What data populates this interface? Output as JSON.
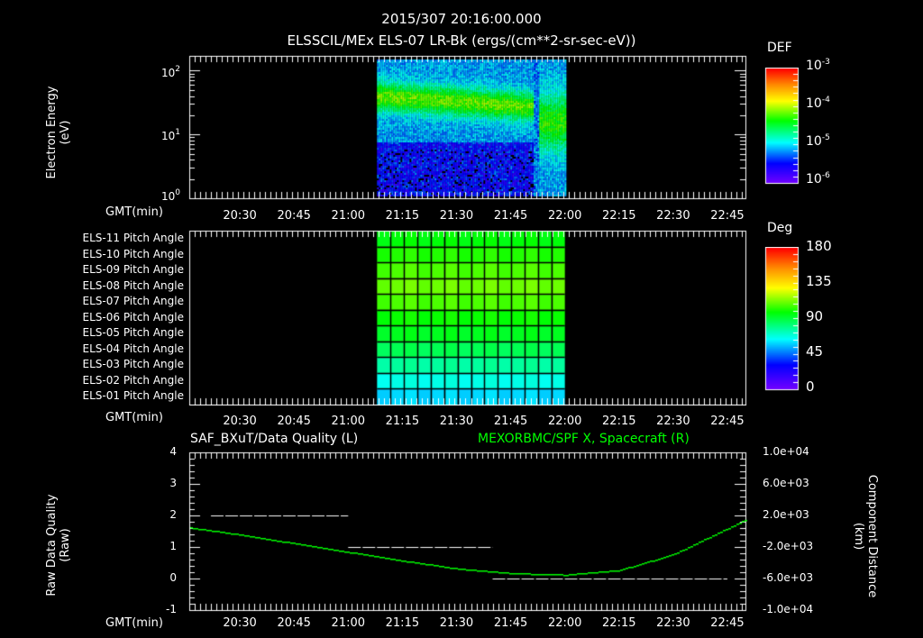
{
  "header": {
    "timestamp": "2015/307 20:16:00.000",
    "subtitle": "ELSSCIL/MEx ELS-07 LR-Bk  (ergs/(cm**2-sr-sec-eV))"
  },
  "x_axis": {
    "label": "GMT(min)",
    "ticks": [
      "20:30",
      "20:45",
      "21:00",
      "21:15",
      "21:30",
      "21:45",
      "22:00",
      "22:15",
      "22:30",
      "22:45"
    ]
  },
  "panel1": {
    "ylabel_line1": "Electron Energy",
    "ylabel_line2": "(eV)",
    "yticks": [
      {
        "base": "10",
        "exp": "2"
      },
      {
        "base": "10",
        "exp": "1"
      },
      {
        "base": "10",
        "exp": "0"
      }
    ],
    "colorbar": {
      "title": "DEF",
      "ticks": [
        {
          "base": "10",
          "exp": "-3"
        },
        {
          "base": "10",
          "exp": "-4"
        },
        {
          "base": "10",
          "exp": "-5"
        },
        {
          "base": "10",
          "exp": "-6"
        }
      ]
    }
  },
  "panel2": {
    "rows": [
      "ELS-11 Pitch Angle",
      "ELS-10 Pitch Angle",
      "ELS-09 Pitch Angle",
      "ELS-08 Pitch Angle",
      "ELS-07 Pitch Angle",
      "ELS-06 Pitch Angle",
      "ELS-05 Pitch Angle",
      "ELS-04 Pitch Angle",
      "ELS-03 Pitch Angle",
      "ELS-02 Pitch Angle",
      "ELS-01 Pitch Angle"
    ],
    "colorbar": {
      "title": "Deg",
      "ticks": [
        "180",
        "135",
        "90",
        "45",
        "0"
      ]
    }
  },
  "panel3": {
    "title_left": "SAF_BXuT/Data Quality (L)",
    "title_right": "MEXORBMC/SPF X, Spacecraft (R)",
    "ylabel_left_line1": "Raw Data Quality",
    "ylabel_left_line2": "(Raw)",
    "yticks_left": [
      "4",
      "3",
      "2",
      "1",
      "0",
      "-1"
    ],
    "ylabel_right_line1": "Component Distance",
    "ylabel_right_line2": "(km)",
    "yticks_right": [
      "1.0e+04",
      "6.0e+03",
      "2.0e+03",
      "-2.0e+03",
      "-6.0e+03",
      "-1.0e+04"
    ]
  },
  "colors": {
    "background": "#000000",
    "axes": "#ffffff",
    "spf_x": "#00ff00",
    "quality": "#ffffff"
  },
  "chart_data": [
    {
      "type": "heatmap",
      "title": "ELSSCIL/MEx ELS-07 LR-Bk (ergs/(cm**2-sr-sec-eV))",
      "xlabel": "GMT(min)",
      "ylabel": "Electron Energy (eV)",
      "x_range": [
        "20:16",
        "22:50"
      ],
      "y_range": [
        1,
        150
      ],
      "y_scale": "log",
      "data_time_range": [
        "21:08",
        "22:00"
      ],
      "colorbar": {
        "label": "DEF",
        "range": [
          1e-06,
          0.001
        ],
        "scale": "log"
      },
      "features": [
        {
          "description": "band of enhanced flux ~20-60 eV, DEF ~1e-4",
          "time": [
            "21:08",
            "21:52"
          ],
          "energy": [
            20,
            60
          ]
        },
        {
          "description": "broad enhancement 5-80 eV",
          "time": [
            "21:52",
            "22:00"
          ],
          "energy": [
            5,
            80
          ]
        }
      ]
    },
    {
      "type": "heatmap",
      "title": "Pitch Angle",
      "xlabel": "GMT(min)",
      "rows": [
        "ELS-11",
        "ELS-10",
        "ELS-09",
        "ELS-08",
        "ELS-07",
        "ELS-06",
        "ELS-05",
        "ELS-04",
        "ELS-03",
        "ELS-02",
        "ELS-01"
      ],
      "data_time_range": [
        "21:08",
        "22:00"
      ],
      "colorbar": {
        "label": "Deg",
        "range": [
          0,
          180
        ]
      },
      "values_deg": [
        98,
        103,
        108,
        112,
        108,
        100,
        95,
        88,
        78,
        68,
        60
      ]
    },
    {
      "type": "line",
      "title": "SAF_BXuT/Data Quality (L) / MEXORBMC/SPF X, Spacecraft (R)",
      "xlabel": "GMT(min)",
      "ylabel_left": "Raw Data Quality (Raw)",
      "ylim_left": [
        -1,
        4
      ],
      "ylabel_right": "Component Distance (km)",
      "ylim_right": [
        -10000,
        10000
      ],
      "series": [
        {
          "name": "Data Quality",
          "axis": "left",
          "segments": [
            {
              "x": [
                "20:22",
                "21:00"
              ],
              "y": 2
            },
            {
              "x": [
                "21:00",
                "21:40"
              ],
              "y": 1
            },
            {
              "x": [
                "21:40",
                "22:45"
              ],
              "y": 0
            }
          ]
        },
        {
          "name": "SPF X",
          "axis": "right",
          "x": [
            "20:16",
            "20:30",
            "20:45",
            "21:00",
            "21:15",
            "21:30",
            "21:45",
            "22:00",
            "22:15",
            "22:30",
            "22:45",
            "22:50"
          ],
          "y": [
            500,
            -400,
            -1500,
            -2600,
            -3700,
            -4700,
            -5300,
            -5500,
            -4900,
            -2900,
            400,
            1500
          ]
        }
      ]
    }
  ]
}
